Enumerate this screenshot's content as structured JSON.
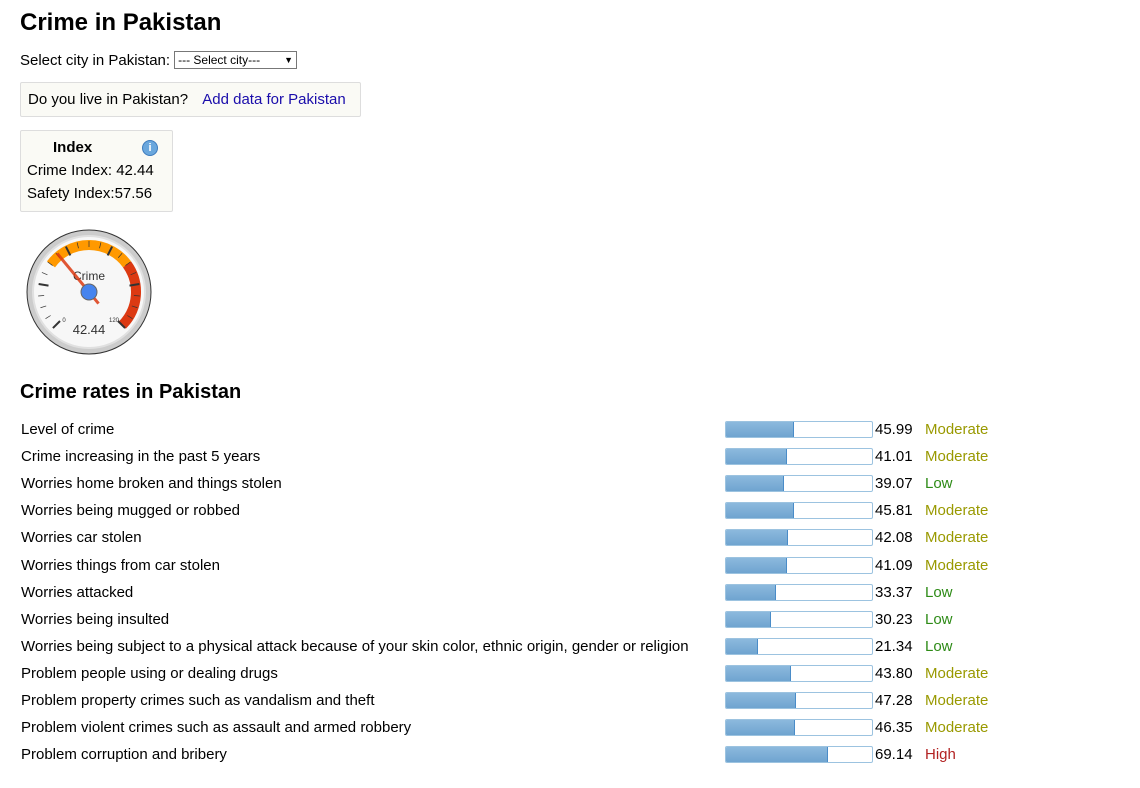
{
  "title": "Crime in Pakistan",
  "select": {
    "label": "Select city in Pakistan:",
    "value": "--- Select city---"
  },
  "live": {
    "question": "Do you live in Pakistan?",
    "link": "Add data for Pakistan"
  },
  "index": {
    "heading": "Index",
    "crime_label": "Crime Index:",
    "crime_value": "42.44",
    "safety_label": "Safety Index:",
    "safety_value": "57.56",
    "info_icon": "info-icon"
  },
  "gauge": {
    "label": "Crime",
    "value": 42.44,
    "value_text": "42.44",
    "min": 0,
    "max": 120,
    "min_text": "0",
    "max_text": "120",
    "colors": {
      "orange": "#ff9900",
      "red": "#dc3912",
      "needle": "#dc3912",
      "hub": "#4684ee"
    }
  },
  "rates": {
    "heading": "Crime rates in Pakistan",
    "rows": [
      {
        "label": "Level of crime",
        "value": "45.99",
        "level": "Moderate"
      },
      {
        "label": "Crime increasing in the past 5 years",
        "value": "41.01",
        "level": "Moderate"
      },
      {
        "label": "Worries home broken and things stolen",
        "value": "39.07",
        "level": "Low"
      },
      {
        "label": "Worries being mugged or robbed",
        "value": "45.81",
        "level": "Moderate"
      },
      {
        "label": "Worries car stolen",
        "value": "42.08",
        "level": "Moderate"
      },
      {
        "label": "Worries things from car stolen",
        "value": "41.09",
        "level": "Moderate"
      },
      {
        "label": "Worries attacked",
        "value": "33.37",
        "level": "Low"
      },
      {
        "label": "Worries being insulted",
        "value": "30.23",
        "level": "Low"
      },
      {
        "label": "Worries being subject to a physical attack because of your skin color, ethnic origin, gender or religion",
        "value": "21.34",
        "level": "Low"
      },
      {
        "label": "Problem people using or dealing drugs",
        "value": "43.80",
        "level": "Moderate"
      },
      {
        "label": "Problem property crimes such as vandalism and theft",
        "value": "47.28",
        "level": "Moderate"
      },
      {
        "label": "Problem violent crimes such as assault and armed robbery",
        "value": "46.35",
        "level": "Moderate"
      },
      {
        "label": "Problem corruption and bribery",
        "value": "69.14",
        "level": "High"
      }
    ]
  },
  "level_colors": {
    "Low": "#2e8b17",
    "Moderate": "#999900",
    "High": "#b22222"
  }
}
